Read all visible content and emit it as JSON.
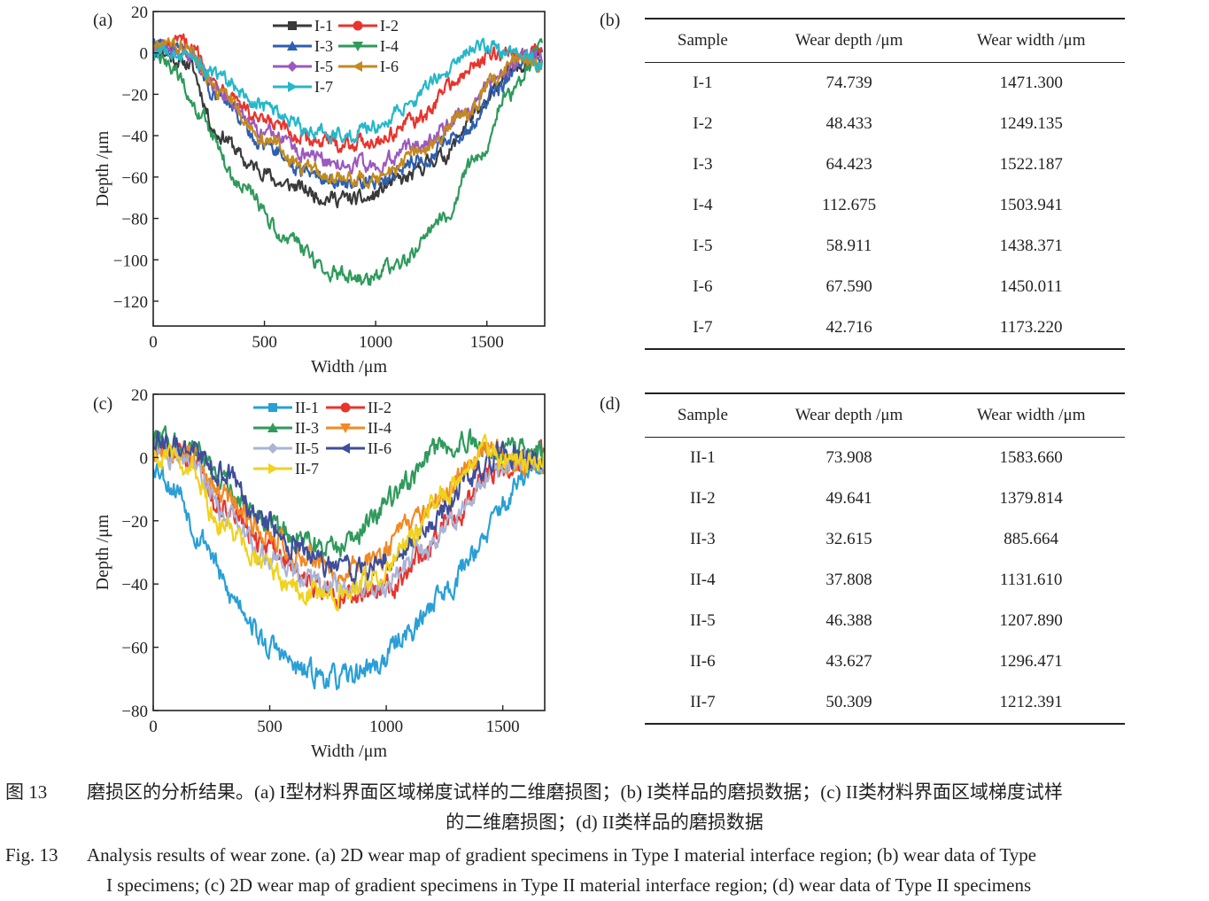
{
  "panels": {
    "a": "(a)",
    "b": "(b)",
    "c": "(c)",
    "d": "(d)"
  },
  "chart_data": [
    {
      "id": "a",
      "type": "line",
      "title": "",
      "xlabel": "Width /μm",
      "ylabel": "Depth /μm",
      "xlim": [
        0,
        1760
      ],
      "ylim": [
        -132,
        20
      ],
      "xticks": [
        0,
        500,
        1000,
        1500
      ],
      "yticks": [
        20,
        0,
        -20,
        -40,
        -60,
        -80,
        -100,
        -120
      ],
      "xtick_labels": [
        "0",
        "500",
        "1000",
        "1500"
      ],
      "ytick_labels": [
        "20",
        "0",
        "−20",
        "−40",
        "−60",
        "−80",
        "−100",
        "−120"
      ],
      "grid": false,
      "legend": "top-center",
      "series": [
        {
          "name": "I-1",
          "color": "#3a3a3a",
          "marker": "square",
          "points": [
            [
              0,
              2
            ],
            [
              150,
              -5
            ],
            [
              300,
              -40
            ],
            [
              450,
              -55
            ],
            [
              600,
              -64
            ],
            [
              800,
              -70
            ],
            [
              950,
              -71
            ],
            [
              1100,
              -62
            ],
            [
              1300,
              -50
            ],
            [
              1450,
              -30
            ],
            [
              1600,
              -10
            ],
            [
              1750,
              3
            ]
          ]
        },
        {
          "name": "I-2",
          "color": "#e8342d",
          "marker": "circle",
          "points": [
            [
              0,
              0
            ],
            [
              150,
              5
            ],
            [
              300,
              -16
            ],
            [
              500,
              -34
            ],
            [
              700,
              -42
            ],
            [
              850,
              -44
            ],
            [
              1000,
              -42
            ],
            [
              1200,
              -32
            ],
            [
              1350,
              -14
            ],
            [
              1500,
              -2
            ],
            [
              1600,
              0
            ],
            [
              1750,
              0
            ]
          ]
        },
        {
          "name": "I-3",
          "color": "#2e5fb0",
          "marker": "triangle-up",
          "points": [
            [
              0,
              5
            ],
            [
              150,
              0
            ],
            [
              300,
              -22
            ],
            [
              500,
              -44
            ],
            [
              700,
              -58
            ],
            [
              850,
              -62
            ],
            [
              1000,
              -62
            ],
            [
              1200,
              -52
            ],
            [
              1400,
              -38
            ],
            [
              1550,
              -18
            ],
            [
              1650,
              -4
            ],
            [
              1750,
              0
            ]
          ]
        },
        {
          "name": "I-4",
          "color": "#2f9a5b",
          "marker": "triangle-down",
          "points": [
            [
              0,
              0
            ],
            [
              100,
              -10
            ],
            [
              200,
              -30
            ],
            [
              400,
              -65
            ],
            [
              600,
              -90
            ],
            [
              800,
              -106
            ],
            [
              950,
              -110
            ],
            [
              1100,
              -102
            ],
            [
              1300,
              -80
            ],
            [
              1450,
              -52
            ],
            [
              1600,
              -20
            ],
            [
              1750,
              2
            ]
          ]
        },
        {
          "name": "I-5",
          "color": "#9b59c0",
          "marker": "diamond",
          "points": [
            [
              0,
              3
            ],
            [
              150,
              0
            ],
            [
              300,
              -20
            ],
            [
              500,
              -38
            ],
            [
              700,
              -50
            ],
            [
              850,
              -54
            ],
            [
              1000,
              -54
            ],
            [
              1200,
              -44
            ],
            [
              1400,
              -30
            ],
            [
              1550,
              -12
            ],
            [
              1650,
              -3
            ],
            [
              1750,
              -2
            ]
          ]
        },
        {
          "name": "I-6",
          "color": "#c48a1e",
          "marker": "triangle-left",
          "points": [
            [
              0,
              5
            ],
            [
              150,
              3
            ],
            [
              300,
              -20
            ],
            [
              500,
              -42
            ],
            [
              700,
              -56
            ],
            [
              850,
              -62
            ],
            [
              1000,
              -60
            ],
            [
              1200,
              -48
            ],
            [
              1400,
              -30
            ],
            [
              1550,
              -10
            ],
            [
              1650,
              -2
            ],
            [
              1750,
              -5
            ]
          ]
        },
        {
          "name": "I-7",
          "color": "#26b7c9",
          "marker": "triangle-right",
          "points": [
            [
              0,
              0
            ],
            [
              150,
              -2
            ],
            [
              300,
              -12
            ],
            [
              500,
              -26
            ],
            [
              700,
              -37
            ],
            [
              850,
              -40
            ],
            [
              1000,
              -36
            ],
            [
              1150,
              -24
            ],
            [
              1300,
              -10
            ],
            [
              1450,
              4
            ],
            [
              1600,
              0
            ],
            [
              1750,
              -5
            ]
          ]
        }
      ]
    },
    {
      "id": "c",
      "type": "line",
      "title": "",
      "xlabel": "Width /μm",
      "ylabel": "Depth /μm",
      "xlim": [
        0,
        1680
      ],
      "ylim": [
        -80,
        20
      ],
      "xticks": [
        0,
        500,
        1000,
        1500
      ],
      "yticks": [
        20,
        0,
        -20,
        -40,
        -60,
        -80
      ],
      "xtick_labels": [
        "0",
        "500",
        "1000",
        "1500"
      ],
      "ytick_labels": [
        "20",
        "0",
        "−20",
        "−40",
        "−60",
        "−80"
      ],
      "grid": false,
      "legend": "top-center",
      "series": [
        {
          "name": "II-1",
          "color": "#2a9fd6",
          "marker": "square",
          "points": [
            [
              0,
              -2
            ],
            [
              100,
              -10
            ],
            [
              200,
              -25
            ],
            [
              350,
              -45
            ],
            [
              500,
              -60
            ],
            [
              650,
              -68
            ],
            [
              800,
              -70
            ],
            [
              950,
              -66
            ],
            [
              1100,
              -55
            ],
            [
              1250,
              -42
            ],
            [
              1400,
              -28
            ],
            [
              1500,
              -15
            ],
            [
              1600,
              -6
            ],
            [
              1680,
              -3
            ]
          ]
        },
        {
          "name": "II-2",
          "color": "#e8342d",
          "marker": "circle",
          "points": [
            [
              0,
              3
            ],
            [
              150,
              0
            ],
            [
              300,
              -15
            ],
            [
              500,
              -30
            ],
            [
              700,
              -40
            ],
            [
              850,
              -44
            ],
            [
              1000,
              -42
            ],
            [
              1150,
              -32
            ],
            [
              1300,
              -18
            ],
            [
              1450,
              -5
            ],
            [
              1600,
              0
            ],
            [
              1680,
              0
            ]
          ]
        },
        {
          "name": "II-3",
          "color": "#2f9a5b",
          "marker": "triangle-up",
          "points": [
            [
              0,
              5
            ],
            [
              150,
              3
            ],
            [
              300,
              -8
            ],
            [
              450,
              -18
            ],
            [
              600,
              -25
            ],
            [
              750,
              -30
            ],
            [
              850,
              -26
            ],
            [
              950,
              -18
            ],
            [
              1100,
              -8
            ],
            [
              1200,
              2
            ],
            [
              1350,
              5
            ],
            [
              1500,
              3
            ],
            [
              1680,
              2
            ]
          ]
        },
        {
          "name": "II-4",
          "color": "#f08a24",
          "marker": "triangle-down",
          "points": [
            [
              0,
              0
            ],
            [
              150,
              2
            ],
            [
              300,
              -12
            ],
            [
              500,
              -25
            ],
            [
              650,
              -32
            ],
            [
              800,
              -36
            ],
            [
              950,
              -32
            ],
            [
              1100,
              -22
            ],
            [
              1250,
              -12
            ],
            [
              1350,
              -2
            ],
            [
              1450,
              3
            ],
            [
              1550,
              -2
            ],
            [
              1680,
              0
            ]
          ]
        },
        {
          "name": "II-5",
          "color": "#a9b4d6",
          "marker": "diamond",
          "points": [
            [
              0,
              2
            ],
            [
              150,
              0
            ],
            [
              300,
              -18
            ],
            [
              500,
              -32
            ],
            [
              700,
              -40
            ],
            [
              850,
              -42
            ],
            [
              1000,
              -40
            ],
            [
              1150,
              -30
            ],
            [
              1300,
              -18
            ],
            [
              1450,
              -5
            ],
            [
              1600,
              -1
            ],
            [
              1680,
              0
            ]
          ]
        },
        {
          "name": "II-6",
          "color": "#3f4d9a",
          "marker": "triangle-left",
          "points": [
            [
              0,
              5
            ],
            [
              150,
              3
            ],
            [
              300,
              -5
            ],
            [
              450,
              -18
            ],
            [
              600,
              -28
            ],
            [
              750,
              -34
            ],
            [
              900,
              -36
            ],
            [
              1050,
              -30
            ],
            [
              1200,
              -20
            ],
            [
              1350,
              -8
            ],
            [
              1500,
              2
            ],
            [
              1600,
              0
            ],
            [
              1680,
              -2
            ]
          ]
        },
        {
          "name": "II-7",
          "color": "#f0d21f",
          "marker": "triangle-right",
          "points": [
            [
              0,
              0
            ],
            [
              150,
              -3
            ],
            [
              300,
              -22
            ],
            [
              500,
              -36
            ],
            [
              650,
              -42
            ],
            [
              800,
              -44
            ],
            [
              950,
              -38
            ],
            [
              1100,
              -26
            ],
            [
              1250,
              -12
            ],
            [
              1400,
              2
            ],
            [
              1500,
              0
            ],
            [
              1600,
              -1
            ],
            [
              1680,
              0
            ]
          ]
        }
      ]
    },
    {
      "id": "b",
      "type": "table",
      "headers": [
        "Sample",
        "Wear depth /μm",
        "Wear width /μm"
      ],
      "rows": [
        [
          "I-1",
          "74.739",
          "1471.300"
        ],
        [
          "I-2",
          "48.433",
          "1249.135"
        ],
        [
          "I-3",
          "64.423",
          "1522.187"
        ],
        [
          "I-4",
          "112.675",
          "1503.941"
        ],
        [
          "I-5",
          "58.911",
          "1438.371"
        ],
        [
          "I-6",
          "67.590",
          "1450.011"
        ],
        [
          "I-7",
          "42.716",
          "1173.220"
        ]
      ]
    },
    {
      "id": "d",
      "type": "table",
      "headers": [
        "Sample",
        "Wear depth /μm",
        "Wear width /μm"
      ],
      "rows": [
        [
          "II-1",
          "73.908",
          "1583.660"
        ],
        [
          "II-2",
          "49.641",
          "1379.814"
        ],
        [
          "II-3",
          "32.615",
          "885.664"
        ],
        [
          "II-4",
          "37.808",
          "1131.610"
        ],
        [
          "II-5",
          "46.388",
          "1207.890"
        ],
        [
          "II-6",
          "43.627",
          "1296.471"
        ],
        [
          "II-7",
          "50.309",
          "1212.391"
        ]
      ]
    }
  ],
  "caption": {
    "cn_num": "图 13",
    "cn_line1": "磨损区的分析结果。(a) I型材料界面区域梯度试样的二维磨损图；(b) I类样品的磨损数据；(c) II类材料界面区域梯度试样",
    "cn_line2": "的二维磨损图；(d) II类样品的磨损数据",
    "en_num": "Fig. 13",
    "en_line1": "Analysis results of wear zone. (a) 2D wear map of gradient specimens in Type I material interface region; (b) wear data of Type",
    "en_line2": "I specimens; (c) 2D wear map of gradient specimens in Type II material interface region; (d) wear data of Type II specimens"
  }
}
